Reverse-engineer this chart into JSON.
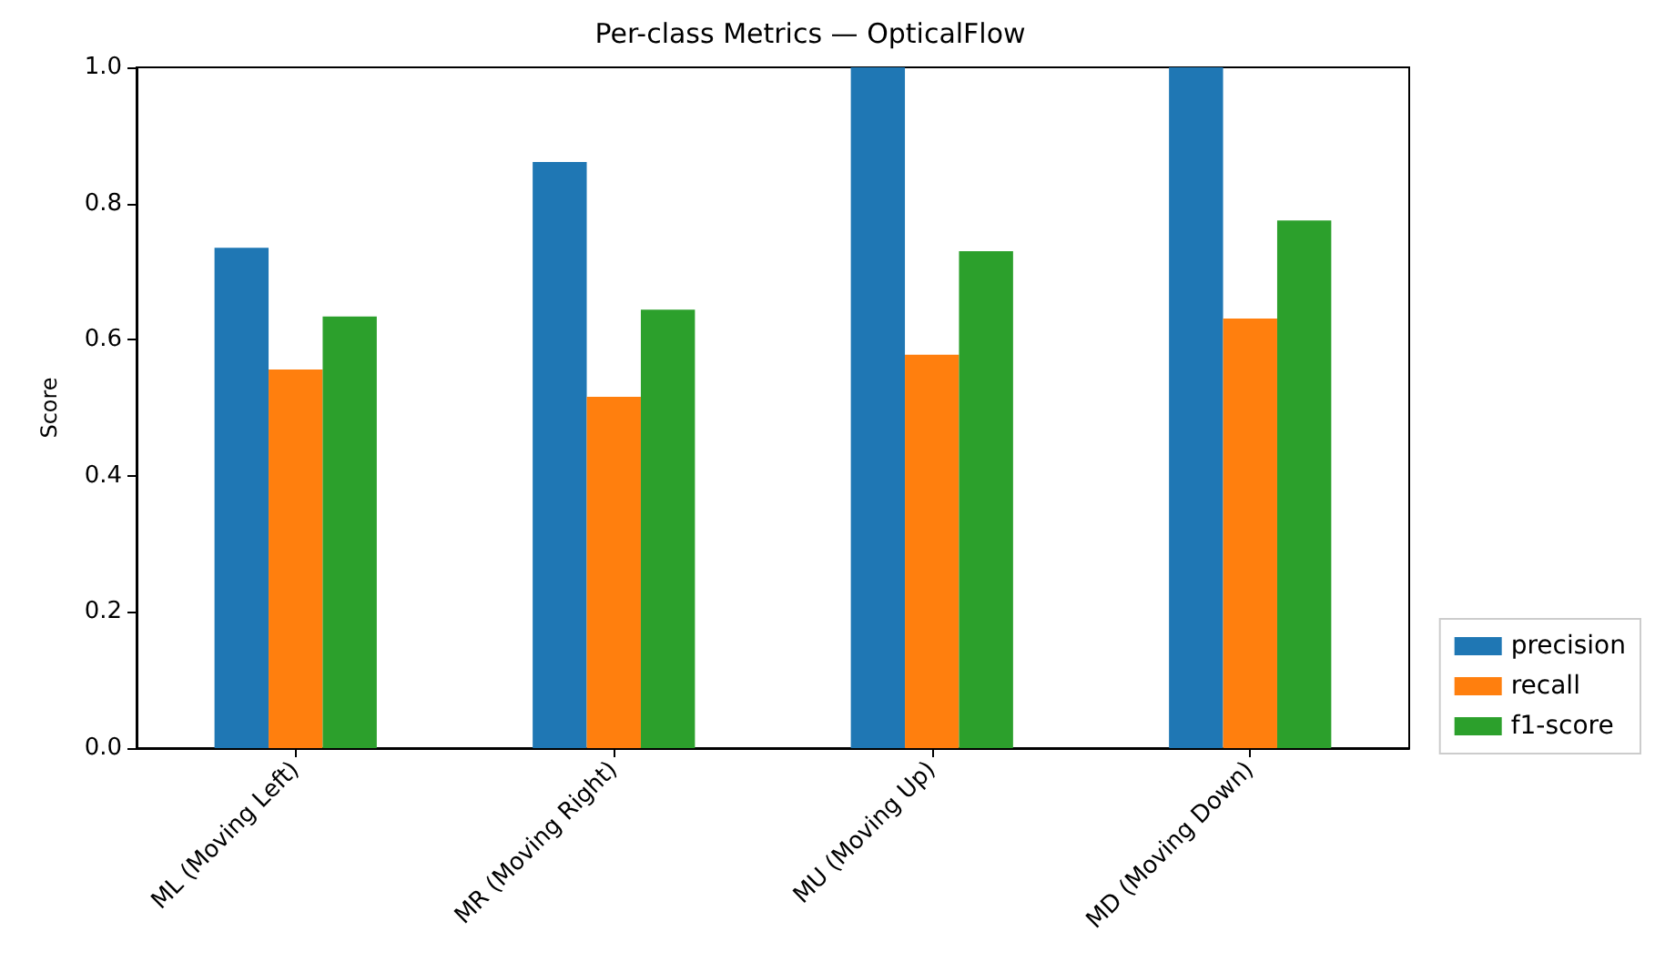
{
  "chart_data": {
    "type": "bar",
    "title": "Per-class Metrics — OpticalFlow",
    "ylabel": "Score",
    "categories": [
      "ML (Moving Left)",
      "MR (Moving Right)",
      "MU (Moving Up)",
      "MD (Moving Down)"
    ],
    "series": [
      {
        "name": "precision",
        "color": "#1f77b4",
        "values": [
          0.735,
          0.861,
          1.0,
          1.0
        ]
      },
      {
        "name": "recall",
        "color": "#ff7f0e",
        "values": [
          0.556,
          0.516,
          0.578,
          0.631
        ]
      },
      {
        "name": "f1-score",
        "color": "#2ca02c",
        "values": [
          0.634,
          0.644,
          0.73,
          0.775
        ]
      }
    ],
    "ylim": [
      0,
      1
    ],
    "yticks": [
      {
        "value": 0,
        "label": "0.0"
      },
      0.2,
      0.4,
      0.6,
      0.8,
      {
        "value": 1,
        "label": "1.0"
      }
    ],
    "legend": "bottom right"
  }
}
